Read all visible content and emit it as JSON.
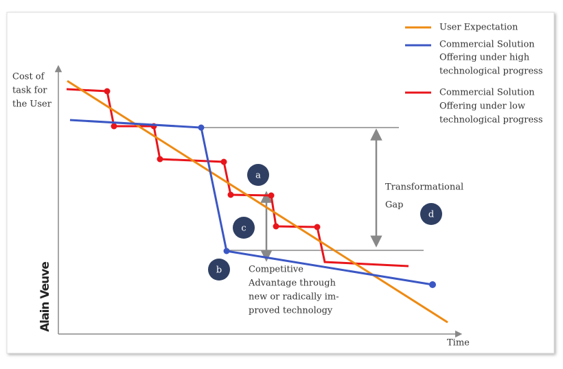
{
  "axes": {
    "y_label": [
      "Cost of",
      "task for",
      "the User"
    ],
    "x_label": "Time"
  },
  "legend": [
    {
      "lines": [
        "User Expectation"
      ]
    },
    {
      "lines": [
        "Commercial Solution",
        "Offering under high",
        "technological progress"
      ]
    },
    {
      "lines": [
        "Commercial Solution",
        "Offering under low",
        "technological progress"
      ]
    }
  ],
  "annotations": {
    "transformational_gap": [
      "Transformational",
      "Gap"
    ],
    "competitive_advantage": [
      "Competitive",
      "Advantage through",
      "new or radically im-",
      "proved technology"
    ]
  },
  "markers": [
    "a",
    "b",
    "c",
    "d"
  ],
  "logo": "Alain Veuve"
}
